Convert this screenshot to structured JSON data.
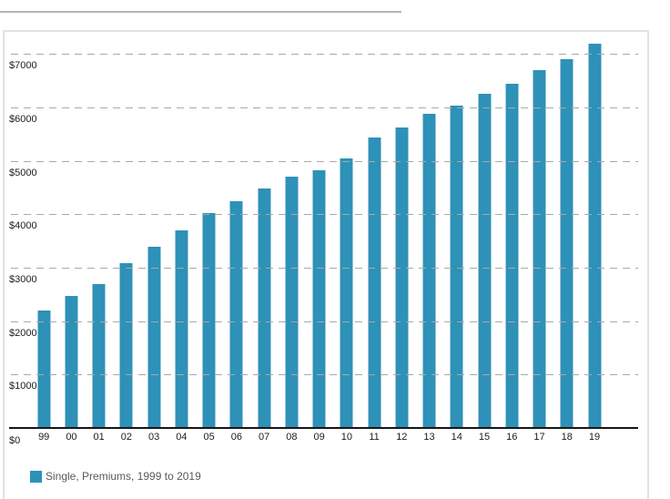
{
  "chart_data": {
    "type": "bar",
    "title": "",
    "xlabel": "",
    "ylabel": "",
    "categories": [
      "99",
      "00",
      "01",
      "02",
      "03",
      "04",
      "05",
      "06",
      "07",
      "08",
      "09",
      "10",
      "11",
      "12",
      "13",
      "14",
      "15",
      "16",
      "17",
      "18",
      "19"
    ],
    "series": [
      {
        "name": "Single, Premiums, 1999 to 2019",
        "values": [
          2196,
          2471,
          2689,
          3083,
          3383,
          3695,
          4024,
          4242,
          4479,
          4704,
          4824,
          5049,
          5429,
          5615,
          5884,
          6025,
          6251,
          6435,
          6690,
          6896,
          7188
        ]
      }
    ],
    "ylim": [
      0,
      7450
    ],
    "y_ticks": [
      {
        "label": "$0",
        "value": 0
      },
      {
        "label": "$1000",
        "value": 1000
      },
      {
        "label": "$2000",
        "value": 2000
      },
      {
        "label": "$3000",
        "value": 3000
      },
      {
        "label": "$4000",
        "value": 4000
      },
      {
        "label": "$5000",
        "value": 5000
      },
      {
        "label": "$6000",
        "value": 6000
      },
      {
        "label": "$7000",
        "value": 7000
      }
    ],
    "grid": "horizontal-dashed",
    "legend_position": "bottom-left",
    "bar_color": "#2e91b7",
    "grid_color": "#a9a9a9",
    "axis_line_color": "#171717",
    "tick_label_color": "#1c1c1c"
  },
  "legend": {
    "label": "Single, Premiums, 1999 to 2019",
    "swatch_color": "#2e91b7"
  }
}
